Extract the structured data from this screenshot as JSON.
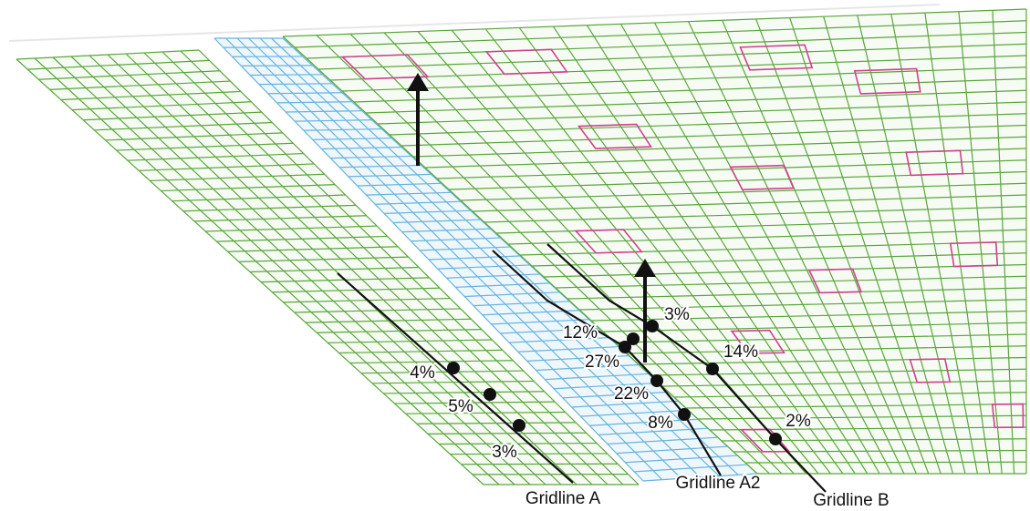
{
  "gridlines": [
    {
      "label": "Gridline A",
      "points": [
        "4%",
        "5%",
        "3%"
      ]
    },
    {
      "label": "Gridline A2",
      "points": [
        "12%",
        "27%",
        "22%",
        "8%"
      ]
    },
    {
      "label": "Gridline B",
      "points": [
        "3%",
        "14%",
        "2%"
      ]
    }
  ]
}
